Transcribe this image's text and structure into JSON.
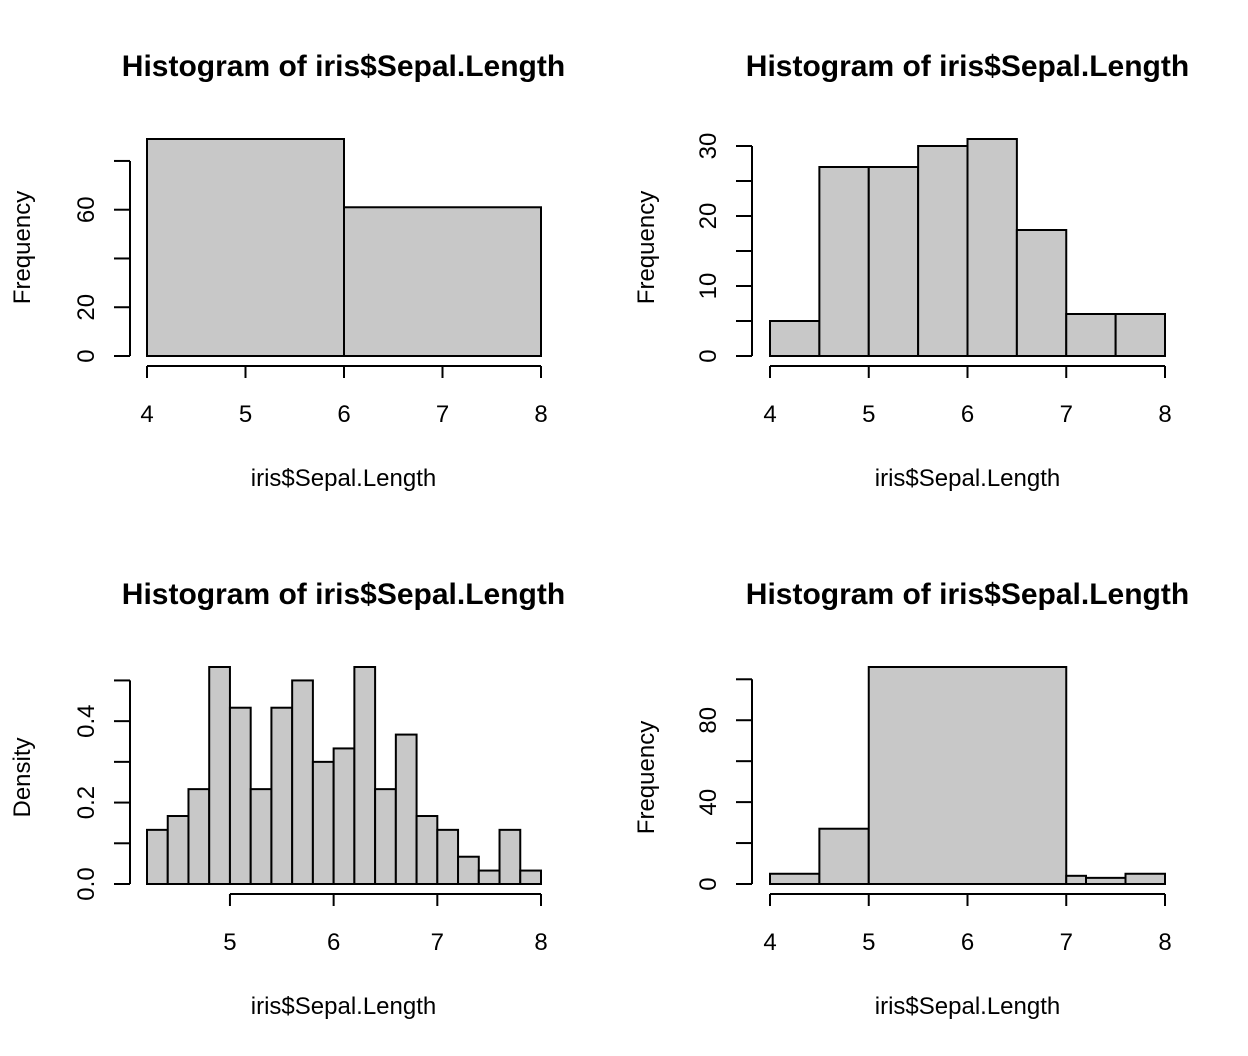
{
  "chart_data": [
    {
      "type": "bar",
      "title": "Histogram of iris$Sepal.Length",
      "xlabel": "iris$Sepal.Length",
      "ylabel": "Frequency",
      "bin_edges": [
        4,
        6,
        8
      ],
      "values": [
        89,
        61
      ],
      "xlim": [
        4,
        8
      ],
      "ylim": [
        0,
        89
      ],
      "xticks": [
        4,
        5,
        6,
        7,
        8
      ],
      "yticks": [
        0,
        20,
        40,
        60,
        80
      ],
      "ytick_labels": [
        "0",
        "20",
        "",
        "60",
        ""
      ],
      "bar_fill": "#c8c8c8",
      "grid": false
    },
    {
      "type": "bar",
      "title": "Histogram of iris$Sepal.Length",
      "xlabel": "iris$Sepal.Length",
      "ylabel": "Frequency",
      "bin_edges": [
        4,
        4.5,
        5,
        5.5,
        6,
        6.5,
        7,
        7.5,
        8
      ],
      "values": [
        5,
        27,
        27,
        30,
        31,
        18,
        6,
        6
      ],
      "xlim": [
        4,
        8
      ],
      "ylim": [
        0,
        31
      ],
      "xticks": [
        4,
        5,
        6,
        7,
        8
      ],
      "yticks": [
        0,
        5,
        10,
        15,
        20,
        25,
        30
      ],
      "ytick_labels": [
        "0",
        "",
        "10",
        "",
        "20",
        "",
        "30"
      ],
      "bar_fill": "#c8c8c8",
      "grid": false
    },
    {
      "type": "bar",
      "title": "Histogram of iris$Sepal.Length",
      "xlabel": "iris$Sepal.Length",
      "ylabel": "Density",
      "bin_edges": [
        4.2,
        4.4,
        4.6,
        4.8,
        5.0,
        5.2,
        5.4,
        5.6,
        5.8,
        6.0,
        6.2,
        6.4,
        6.6,
        6.8,
        7.0,
        7.2,
        7.4,
        7.6,
        7.8,
        8.0
      ],
      "values": [
        0.133,
        0.167,
        0.233,
        0.533,
        0.433,
        0.233,
        0.433,
        0.5,
        0.3,
        0.333,
        0.533,
        0.233,
        0.367,
        0.167,
        0.133,
        0.067,
        0.033,
        0.133,
        0.033
      ],
      "xlim": [
        4.2,
        8
      ],
      "ylim": [
        0,
        0.533
      ],
      "xticks": [
        5,
        6,
        7,
        8
      ],
      "yticks": [
        0,
        0.1,
        0.2,
        0.3,
        0.4,
        0.5
      ],
      "ytick_labels": [
        "0.0",
        "",
        "0.2",
        "",
        "0.4",
        ""
      ],
      "bar_fill": "#c8c8c8",
      "grid": false
    },
    {
      "type": "bar",
      "title": "Histogram of iris$Sepal.Length",
      "xlabel": "iris$Sepal.Length",
      "ylabel": "Frequency",
      "bin_edges": [
        4,
        4.5,
        5,
        7,
        7.2,
        7.6,
        8
      ],
      "values": [
        5,
        27,
        106,
        4,
        3,
        5
      ],
      "xlim": [
        4,
        8
      ],
      "ylim": [
        0,
        106
      ],
      "xticks": [
        4,
        5,
        6,
        7,
        8
      ],
      "yticks": [
        0,
        20,
        40,
        60,
        80,
        100
      ],
      "ytick_labels": [
        "0",
        "",
        "40",
        "",
        "80",
        ""
      ],
      "bar_fill": "#c8c8c8",
      "grid": false
    }
  ]
}
